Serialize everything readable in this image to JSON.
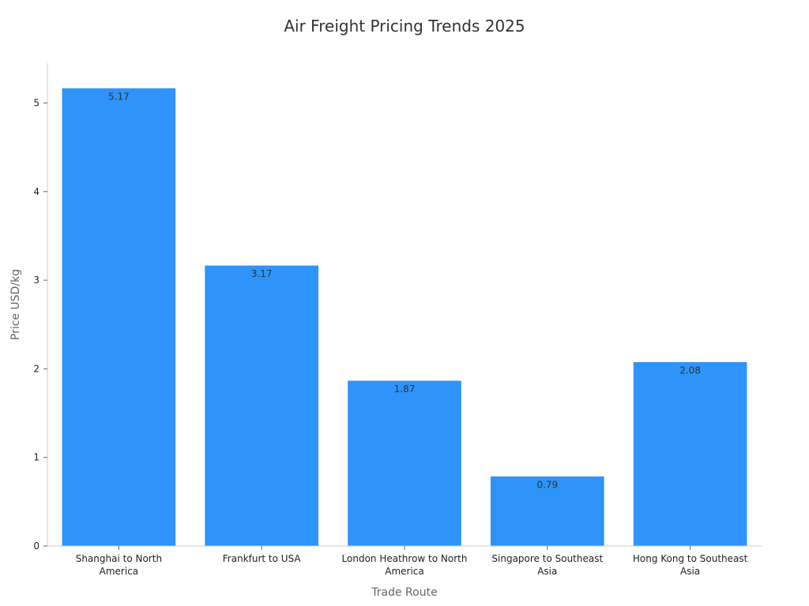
{
  "chart_data": {
    "type": "bar",
    "title": "Air Freight Pricing Trends 2025",
    "xlabel": "Trade Route",
    "ylabel": "Price USD/kg",
    "categories": [
      "Shanghai to North America",
      "Frankfurt to USA",
      "London Heathrow to North America",
      "Singapore to Southeast Asia",
      "Hong Kong to Southeast Asia"
    ],
    "values": [
      5.17,
      3.17,
      1.87,
      0.79,
      2.08
    ],
    "data_labels": [
      "5.17",
      "3.17",
      "1.87",
      "0.79",
      "2.08"
    ],
    "ylim": [
      0,
      5.45
    ],
    "yticks": [
      0,
      1,
      2,
      3,
      4,
      5
    ],
    "grid": false,
    "legend": "none",
    "bar_color": "#2e93fa",
    "bar_edge_color": "#ffffff"
  }
}
